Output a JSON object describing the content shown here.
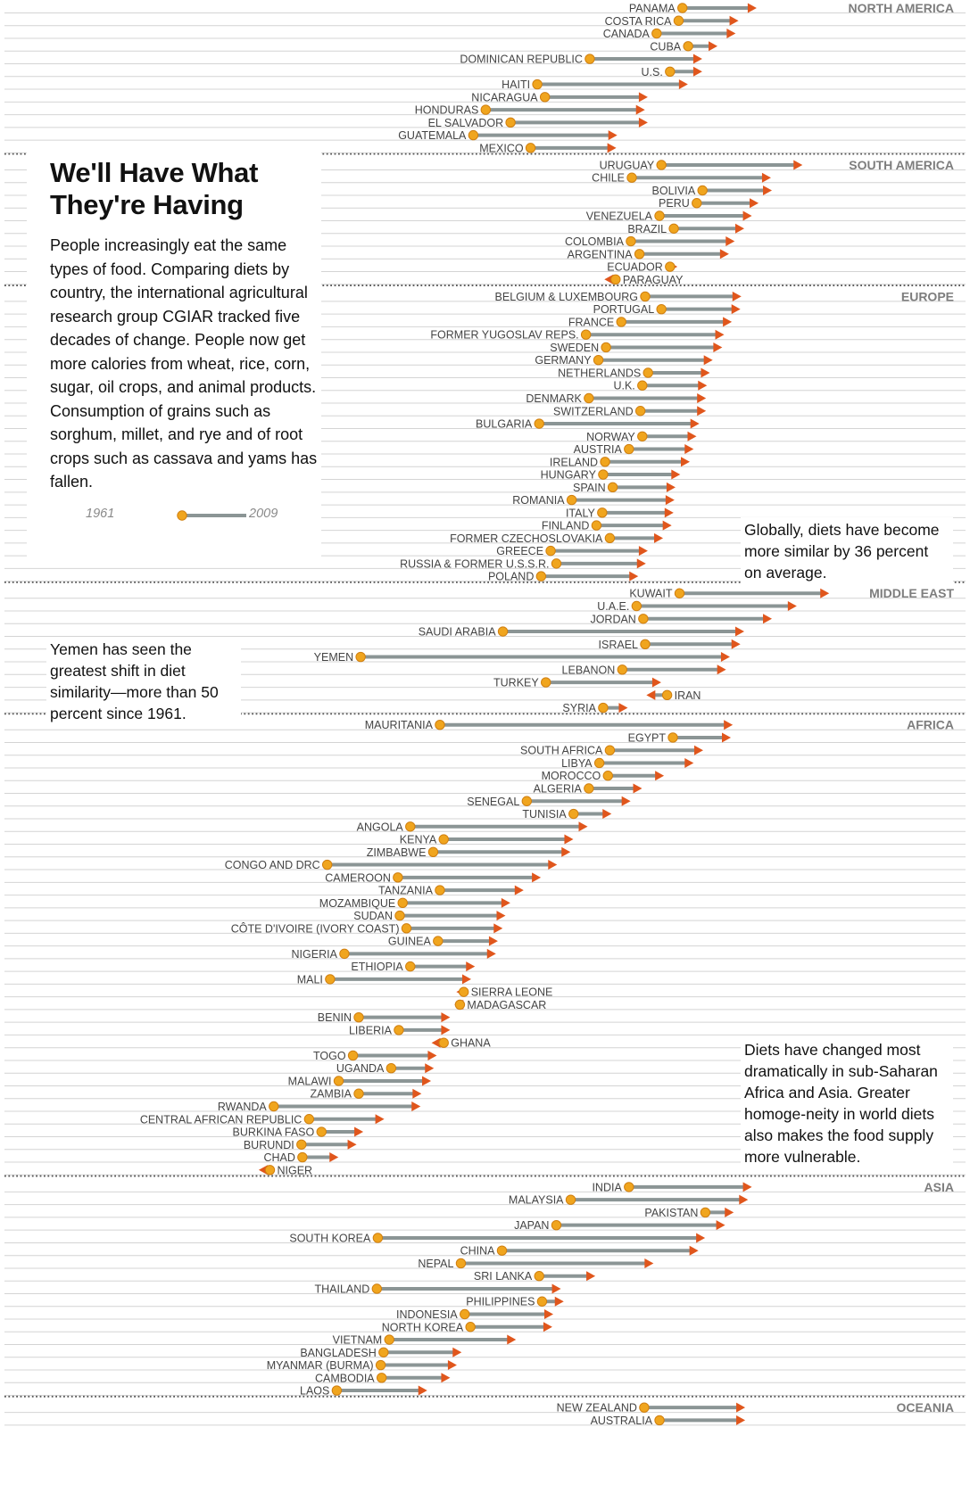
{
  "panel": {
    "title": "We'll Have What They're Having",
    "body": "People increasingly eat the same types of food. Comparing diets by country, the international agricultural research group CGIAR tracked five decades of change. People now get more calories from wheat, rice, corn, sugar, oil crops, and animal products. Consumption of grains such as sorghum, millet, and rye and of root crops such as cassava and yams has fallen.",
    "legend_start": "1961",
    "legend_end": "2009"
  },
  "notes": {
    "yemen": "Yemen has seen the greatest shift in diet similarity—more than 50 percent since 1961.",
    "global": "Globally, diets have become more similar by 36 percent on average.",
    "africa": "Diets have changed most dramatically in sub-Saharan Africa and Asia. Greater homoge-neity in world diets also makes the food supply more vulnerable."
  },
  "colors": {
    "start_dot": "#f0a51e",
    "end_arrow": "#e0561c",
    "bar": "#8b9595",
    "row_line": "#d4d4d4",
    "divider": "#555555"
  },
  "chart_data": {
    "type": "dumbbell",
    "title": "We'll Have What They're Having",
    "x_axis": "diet similarity (no printed scale)",
    "start_year": "1961",
    "end_year": "2009",
    "grid": true,
    "regions": [
      {
        "name": "NORTH AMERICA",
        "countries": [
          {
            "name": "PANAMA",
            "start": 716,
            "end": 790
          },
          {
            "name": "COSTA RICA",
            "start": 712,
            "end": 771
          },
          {
            "name": "CANADA",
            "start": 689,
            "end": 768
          },
          {
            "name": "CUBA",
            "start": 722,
            "end": 749
          },
          {
            "name": "DOMINICAN REPUBLIC",
            "start": 619,
            "end": 733
          },
          {
            "name": "U.S.",
            "start": 703,
            "end": 733
          },
          {
            "name": "HAITI",
            "start": 564,
            "end": 718
          },
          {
            "name": "NICARAGUA",
            "start": 572,
            "end": 676
          },
          {
            "name": "HONDURAS",
            "start": 510,
            "end": 673
          },
          {
            "name": "EL SALVADOR",
            "start": 536,
            "end": 676
          },
          {
            "name": "GUATEMALA",
            "start": 497,
            "end": 644
          },
          {
            "name": "MEXICO",
            "start": 557,
            "end": 643
          }
        ]
      },
      {
        "name": "SOUTH AMERICA",
        "countries": [
          {
            "name": "URUGUAY",
            "start": 694,
            "end": 838
          },
          {
            "name": "CHILE",
            "start": 663,
            "end": 805
          },
          {
            "name": "BOLIVIA",
            "start": 737,
            "end": 806
          },
          {
            "name": "PERU",
            "start": 731,
            "end": 792
          },
          {
            "name": "VENEZUELA",
            "start": 692,
            "end": 785
          },
          {
            "name": "BRAZIL",
            "start": 707,
            "end": 777
          },
          {
            "name": "COLOMBIA",
            "start": 662,
            "end": 767
          },
          {
            "name": "ARGENTINA",
            "start": 671,
            "end": 761
          },
          {
            "name": "ECUADOR",
            "start": 703,
            "end": 707
          },
          {
            "name": "PARAGUAY",
            "start": 646,
            "end": 638
          }
        ]
      },
      {
        "name": "EUROPE",
        "countries": [
          {
            "name": "BELGIUM & LUXEMBOURG",
            "start": 677,
            "end": 774
          },
          {
            "name": "PORTUGAL",
            "start": 694,
            "end": 773
          },
          {
            "name": "FRANCE",
            "start": 652,
            "end": 764
          },
          {
            "name": "FORMER YUGOSLAV REPS.",
            "start": 615,
            "end": 756
          },
          {
            "name": "SWEDEN",
            "start": 636,
            "end": 754
          },
          {
            "name": "GERMANY",
            "start": 628,
            "end": 744
          },
          {
            "name": "NETHERLANDS",
            "start": 680,
            "end": 741
          },
          {
            "name": "U.K.",
            "start": 674,
            "end": 738
          },
          {
            "name": "DENMARK",
            "start": 618,
            "end": 737
          },
          {
            "name": "SWITZERLAND",
            "start": 672,
            "end": 737
          },
          {
            "name": "BULGARIA",
            "start": 566,
            "end": 730
          },
          {
            "name": "NORWAY",
            "start": 674,
            "end": 727
          },
          {
            "name": "AUSTRIA",
            "start": 660,
            "end": 724
          },
          {
            "name": "IRELAND",
            "start": 635,
            "end": 720
          },
          {
            "name": "HUNGARY",
            "start": 633,
            "end": 710
          },
          {
            "name": "SPAIN",
            "start": 643,
            "end": 705
          },
          {
            "name": "ROMANIA",
            "start": 600,
            "end": 704
          },
          {
            "name": "ITALY",
            "start": 632,
            "end": 703
          },
          {
            "name": "FINLAND",
            "start": 626,
            "end": 701
          },
          {
            "name": "FORMER CZECHOSLOVAKIA",
            "start": 640,
            "end": 692
          },
          {
            "name": "GREECE",
            "start": 578,
            "end": 676
          },
          {
            "name": "RUSSIA & FORMER U.S.S.R.",
            "start": 584,
            "end": 674
          },
          {
            "name": "POLAND",
            "start": 568,
            "end": 666
          }
        ]
      },
      {
        "name": "MIDDLE EAST",
        "countries": [
          {
            "name": "KUWAIT",
            "start": 713,
            "end": 866
          },
          {
            "name": "U.A.E.",
            "start": 668,
            "end": 832
          },
          {
            "name": "JORDAN",
            "start": 675,
            "end": 806
          },
          {
            "name": "SAUDI ARABIA",
            "start": 528,
            "end": 777
          },
          {
            "name": "ISRAEL",
            "start": 677,
            "end": 773
          },
          {
            "name": "YEMEN",
            "start": 379,
            "end": 762
          },
          {
            "name": "LEBANON",
            "start": 653,
            "end": 758
          },
          {
            "name": "TURKEY",
            "start": 573,
            "end": 690
          },
          {
            "name": "IRAN",
            "start": 700,
            "end": 682
          },
          {
            "name": "SYRIA",
            "start": 633,
            "end": 655
          }
        ]
      },
      {
        "name": "AFRICA",
        "countries": [
          {
            "name": "MAURITANIA",
            "start": 462,
            "end": 765
          },
          {
            "name": "EGYPT",
            "start": 706,
            "end": 763
          },
          {
            "name": "SOUTH AFRICA",
            "start": 640,
            "end": 734
          },
          {
            "name": "LIBYA",
            "start": 629,
            "end": 724
          },
          {
            "name": "MOROCCO",
            "start": 638,
            "end": 693
          },
          {
            "name": "ALGERIA",
            "start": 618,
            "end": 670
          },
          {
            "name": "SENEGAL",
            "start": 553,
            "end": 658
          },
          {
            "name": "TUNISIA",
            "start": 602,
            "end": 638
          },
          {
            "name": "ANGOLA",
            "start": 431,
            "end": 613
          },
          {
            "name": "KENYA",
            "start": 466,
            "end": 598
          },
          {
            "name": "ZIMBABWE",
            "start": 455,
            "end": 595
          },
          {
            "name": "CONGO AND DRC",
            "start": 344,
            "end": 581
          },
          {
            "name": "CAMEROON",
            "start": 418,
            "end": 564
          },
          {
            "name": "TANZANIA",
            "start": 462,
            "end": 546
          },
          {
            "name": "MOZAMBIQUE",
            "start": 423,
            "end": 532
          },
          {
            "name": "SUDAN",
            "start": 420,
            "end": 527
          },
          {
            "name": "CÔTE D'IVOIRE (IVORY COAST)",
            "start": 427,
            "end": 524
          },
          {
            "name": "GUINEA",
            "start": 460,
            "end": 519
          },
          {
            "name": "NIGERIA",
            "start": 362,
            "end": 517
          },
          {
            "name": "ETHIOPIA",
            "start": 431,
            "end": 495
          },
          {
            "name": "MALI",
            "start": 347,
            "end": 491
          },
          {
            "name": "SIERRA LEONE",
            "start": 487,
            "end": 483
          },
          {
            "name": "MADAGASCAR",
            "start": 483,
            "end": 481
          },
          {
            "name": "BENIN",
            "start": 377,
            "end": 469
          },
          {
            "name": "LIBERIA",
            "start": 419,
            "end": 469
          },
          {
            "name": "GHANA",
            "start": 466,
            "end": 457
          },
          {
            "name": "TOGO",
            "start": 371,
            "end": 455
          },
          {
            "name": "UGANDA",
            "start": 411,
            "end": 452
          },
          {
            "name": "MALAWI",
            "start": 356,
            "end": 449
          },
          {
            "name": "ZAMBIA",
            "start": 377,
            "end": 439
          },
          {
            "name": "RWANDA",
            "start": 288,
            "end": 438
          },
          {
            "name": "CENTRAL AFRICAN REPUBLIC",
            "start": 325,
            "end": 400
          },
          {
            "name": "BURKINA FASO",
            "start": 338,
            "end": 378
          },
          {
            "name": "BURUNDI",
            "start": 317,
            "end": 371
          },
          {
            "name": "CHAD",
            "start": 318,
            "end": 352
          },
          {
            "name": "NIGER",
            "start": 284,
            "end": 276
          }
        ]
      },
      {
        "name": "ASIA",
        "countries": [
          {
            "name": "INDIA",
            "start": 660,
            "end": 785
          },
          {
            "name": "MALAYSIA",
            "start": 599,
            "end": 781
          },
          {
            "name": "PAKISTAN",
            "start": 740,
            "end": 766
          },
          {
            "name": "JAPAN",
            "start": 584,
            "end": 757
          },
          {
            "name": "SOUTH KOREA",
            "start": 397,
            "end": 736
          },
          {
            "name": "CHINA",
            "start": 527,
            "end": 729
          },
          {
            "name": "NEPAL",
            "start": 484,
            "end": 682
          },
          {
            "name": "SRI LANKA",
            "start": 566,
            "end": 621
          },
          {
            "name": "THAILAND",
            "start": 396,
            "end": 585
          },
          {
            "name": "PHILIPPINES",
            "start": 569,
            "end": 588
          },
          {
            "name": "INDONESIA",
            "start": 488,
            "end": 577
          },
          {
            "name": "NORTH KOREA",
            "start": 494,
            "end": 576
          },
          {
            "name": "VIETNAM",
            "start": 409,
            "end": 538
          },
          {
            "name": "BANGLADESH",
            "start": 403,
            "end": 481
          },
          {
            "name": "MYANMAR (BURMA)",
            "start": 400,
            "end": 476
          },
          {
            "name": "CAMBODIA",
            "start": 401,
            "end": 469
          },
          {
            "name": "LAOS",
            "start": 354,
            "end": 445
          }
        ]
      },
      {
        "name": "OCEANIA",
        "countries": [
          {
            "name": "NEW ZEALAND",
            "start": 676,
            "end": 778
          },
          {
            "name": "AUSTRALIA",
            "start": 692,
            "end": 778
          }
        ]
      }
    ]
  }
}
